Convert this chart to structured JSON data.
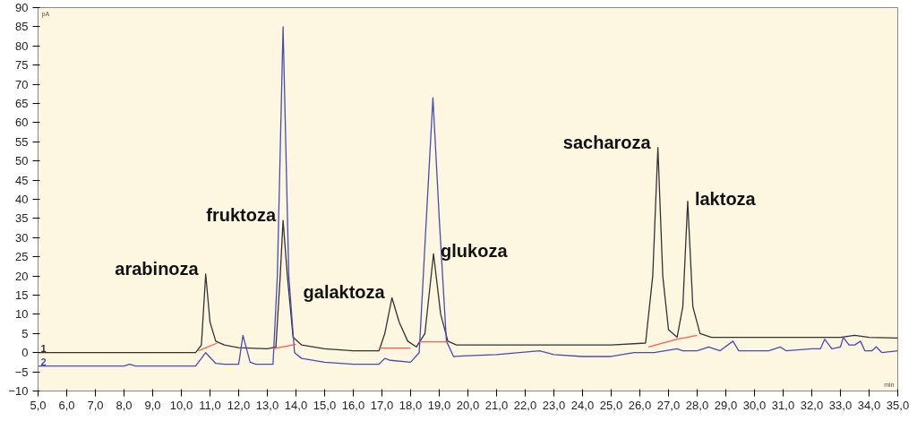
{
  "chart_data": {
    "type": "line",
    "xlabel": "min",
    "ylabel": "pA",
    "xlim": [
      5.0,
      35.0
    ],
    "ylim": [
      -10,
      90
    ],
    "xticks": [
      {
        "value": 5,
        "label": "5,0"
      },
      {
        "value": 6,
        "label": "6,0"
      },
      {
        "value": 7,
        "label": "7,0"
      },
      {
        "value": 8,
        "label": "8,0"
      },
      {
        "value": 9,
        "label": "9,0"
      },
      {
        "value": 10,
        "label": "10,0"
      },
      {
        "value": 11,
        "label": "11,0"
      },
      {
        "value": 12,
        "label": "12,0"
      },
      {
        "value": 13,
        "label": "13,0"
      },
      {
        "value": 14,
        "label": "14,0"
      },
      {
        "value": 15,
        "label": "15,0"
      },
      {
        "value": 16,
        "label": "16,0"
      },
      {
        "value": 17,
        "label": "17,0"
      },
      {
        "value": 18,
        "label": "18,0"
      },
      {
        "value": 19,
        "label": "19,0"
      },
      {
        "value": 20,
        "label": "20,0"
      },
      {
        "value": 21,
        "label": "21,0"
      },
      {
        "value": 22,
        "label": "22,0"
      },
      {
        "value": 23,
        "label": "23,0"
      },
      {
        "value": 24,
        "label": "24,0"
      },
      {
        "value": 25,
        "label": "25,0"
      },
      {
        "value": 26,
        "label": "26,0"
      },
      {
        "value": 27,
        "label": "27,0"
      },
      {
        "value": 28,
        "label": "28,0"
      },
      {
        "value": 29,
        "label": "29,0"
      },
      {
        "value": 30,
        "label": "30,0"
      },
      {
        "value": 31,
        "label": "31,0"
      },
      {
        "value": 32,
        "label": "32,0"
      },
      {
        "value": 33,
        "label": "33,0"
      },
      {
        "value": 34,
        "label": "34,0"
      },
      {
        "value": 35,
        "label": "35,0"
      }
    ],
    "yticks": [
      -10,
      -5,
      0,
      5,
      10,
      15,
      20,
      25,
      30,
      35,
      40,
      45,
      50,
      55,
      60,
      65,
      70,
      75,
      80,
      85,
      90
    ],
    "grid": false,
    "marker": "none",
    "line_style": "solid",
    "series": [
      {
        "name": "1",
        "color": "#333333",
        "x": [
          5.0,
          10.5,
          10.7,
          10.85,
          11.0,
          11.2,
          11.5,
          12.0,
          13.0,
          13.3,
          13.45,
          13.55,
          13.7,
          13.9,
          14.2,
          15.0,
          16.0,
          16.9,
          17.1,
          17.35,
          17.6,
          17.9,
          18.2,
          18.5,
          18.8,
          19.05,
          19.3,
          19.6,
          20.0,
          22.0,
          24.0,
          25.0,
          26.2,
          26.45,
          26.63,
          26.8,
          27.0,
          27.3,
          27.5,
          27.67,
          27.85,
          28.1,
          28.5,
          30.0,
          32.0,
          33.0,
          33.5,
          34.0,
          35.0
        ],
        "values": [
          0,
          0,
          2,
          20.5,
          8,
          3,
          2,
          1.3,
          1,
          1.5,
          20,
          34.5,
          20,
          4,
          2,
          1,
          0.5,
          0.5,
          5,
          14.3,
          8,
          3,
          1.5,
          5,
          25.8,
          10,
          3,
          2,
          2,
          2,
          2,
          2,
          2.5,
          20,
          53.5,
          20,
          6,
          4,
          12,
          39.5,
          12,
          5,
          4,
          4,
          4,
          4,
          4.5,
          4,
          3.8
        ]
      },
      {
        "name": "2",
        "color": "#4b4bb4",
        "x": [
          5.0,
          8.0,
          8.2,
          8.4,
          10.5,
          10.85,
          11.2,
          11.5,
          12.0,
          12.15,
          12.4,
          12.6,
          13.2,
          13.35,
          13.55,
          13.75,
          13.95,
          14.2,
          15.0,
          16.0,
          16.9,
          17.1,
          17.3,
          18.0,
          18.3,
          18.55,
          18.78,
          19.0,
          19.25,
          19.5,
          20.0,
          21.0,
          22.5,
          23.0,
          24.0,
          25.0,
          25.8,
          26.5,
          27.3,
          27.5,
          28.0,
          28.4,
          28.8,
          29.25,
          29.45,
          30.0,
          30.5,
          30.9,
          31.1,
          32.0,
          32.3,
          32.45,
          32.7,
          33.0,
          33.1,
          33.3,
          33.5,
          33.7,
          33.85,
          34.1,
          34.25,
          34.45,
          35.0
        ],
        "values": [
          -3.5,
          -3.5,
          -3,
          -3.5,
          -3.5,
          0,
          -2.8,
          -3,
          -3,
          4.5,
          -2.5,
          -3,
          -3,
          20,
          85,
          20,
          0,
          -1.5,
          -2.5,
          -3,
          -3,
          -1.5,
          -2,
          -2.5,
          0,
          35,
          66.5,
          35,
          3,
          -1,
          -0.8,
          -0.5,
          0.5,
          -0.5,
          -1,
          -1,
          0,
          0,
          1,
          0.5,
          0.5,
          1.5,
          0.5,
          3,
          0.5,
          0.5,
          0.5,
          1.5,
          0.5,
          1,
          1,
          3.5,
          1,
          1.5,
          4,
          2,
          2,
          3,
          0.5,
          0.5,
          1.5,
          0,
          0.5
        ]
      },
      {
        "color": "#ff5a5a",
        "x": [
          10.6,
          11.25
        ],
        "values": [
          0.5,
          2.5
        ]
      },
      {
        "color": "#ff5a5a",
        "x": [
          13.2,
          14.0
        ],
        "values": [
          1,
          2.2
        ]
      },
      {
        "color": "#ff5a5a",
        "x": [
          16.9,
          18.0
        ],
        "values": [
          1.2,
          1.2
        ]
      },
      {
        "color": "#ff5a5a",
        "x": [
          18.3,
          19.3
        ],
        "values": [
          2.8,
          2.8
        ]
      },
      {
        "color": "#ff5a5a",
        "x": [
          26.3,
          27.3,
          28.0
        ],
        "values": [
          1.5,
          3.5,
          4.5
        ]
      }
    ],
    "annotations": [
      {
        "text": "arabinoza",
        "x": 10.85,
        "y": 20.5
      },
      {
        "text": "fruktoza",
        "x": 13.55,
        "y": 34.5
      },
      {
        "text": "galaktoza",
        "x": 17.35,
        "y": 14.3
      },
      {
        "text": "glukoza",
        "x": 18.8,
        "y": 25.8
      },
      {
        "text": "sacharoza",
        "x": 26.63,
        "y": 53.5
      },
      {
        "text": "laktoza",
        "x": 27.67,
        "y": 39.5
      }
    ]
  }
}
